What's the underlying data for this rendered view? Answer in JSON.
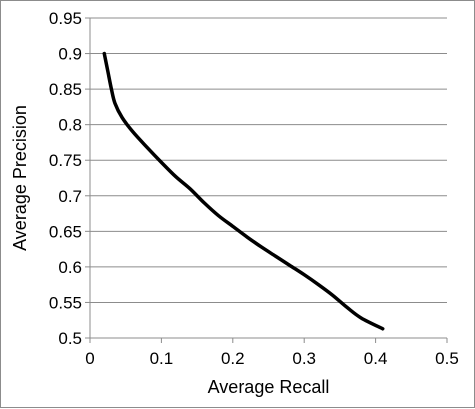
{
  "chart_data": {
    "type": "line",
    "title": "",
    "xlabel": "Average  Recall",
    "ylabel": "Average Precision",
    "xlim": [
      0,
      0.5
    ],
    "ylim": [
      0.5,
      0.95
    ],
    "x_ticks": [
      "0",
      "0.1",
      "0.2",
      "0.3",
      "0.4",
      "0.5"
    ],
    "y_ticks": [
      "0.5",
      "0.55",
      "0.6",
      "0.65",
      "0.7",
      "0.75",
      "0.8",
      "0.85",
      "0.9",
      "0.95"
    ],
    "grid": "horizontal",
    "legend": "none",
    "series": [
      {
        "color": "#000000",
        "points": [
          [
            0.02,
            0.9
          ],
          [
            0.025,
            0.875
          ],
          [
            0.03,
            0.85
          ],
          [
            0.035,
            0.83
          ],
          [
            0.045,
            0.81
          ],
          [
            0.06,
            0.79
          ],
          [
            0.08,
            0.768
          ],
          [
            0.1,
            0.747
          ],
          [
            0.12,
            0.727
          ],
          [
            0.14,
            0.71
          ],
          [
            0.16,
            0.69
          ],
          [
            0.18,
            0.672
          ],
          [
            0.2,
            0.657
          ],
          [
            0.22,
            0.642
          ],
          [
            0.24,
            0.628
          ],
          [
            0.26,
            0.615
          ],
          [
            0.28,
            0.602
          ],
          [
            0.3,
            0.589
          ],
          [
            0.32,
            0.575
          ],
          [
            0.34,
            0.56
          ],
          [
            0.36,
            0.543
          ],
          [
            0.38,
            0.528
          ],
          [
            0.41,
            0.513
          ]
        ]
      }
    ]
  }
}
